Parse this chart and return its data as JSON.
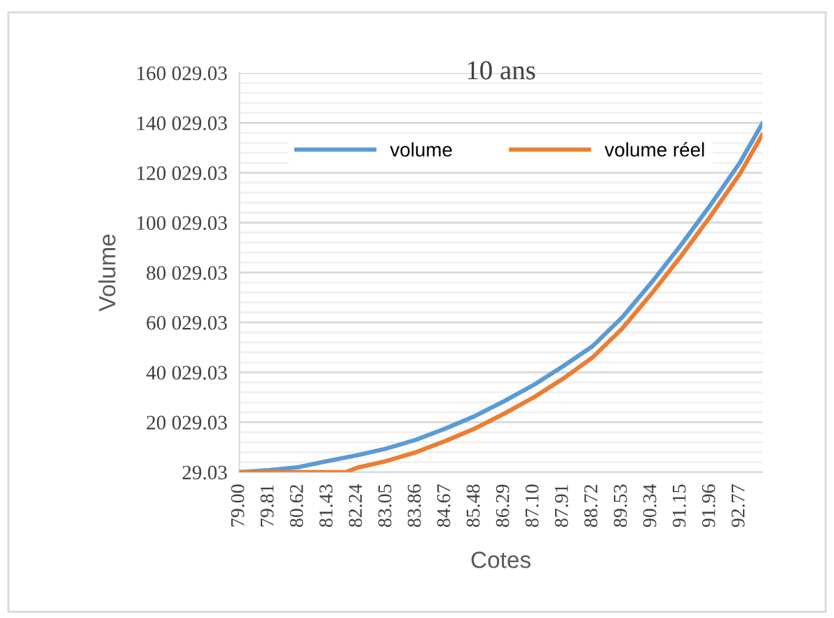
{
  "chart_data": {
    "type": "line",
    "title": "10 ans",
    "xlabel": "Cotes",
    "ylabel": "Volume",
    "xlim": [
      79.0,
      93.39
    ],
    "xticks": [
      {
        "value": 79.0,
        "label": "79.00"
      },
      {
        "value": 79.81,
        "label": "79.81"
      },
      {
        "value": 80.62,
        "label": "80.62"
      },
      {
        "value": 81.43,
        "label": "81.43"
      },
      {
        "value": 82.24,
        "label": "82.24"
      },
      {
        "value": 83.05,
        "label": "83.05"
      },
      {
        "value": 83.86,
        "label": "83.86"
      },
      {
        "value": 84.67,
        "label": "84.67"
      },
      {
        "value": 85.48,
        "label": "85.48"
      },
      {
        "value": 86.29,
        "label": "86.29"
      },
      {
        "value": 87.1,
        "label": "87.10"
      },
      {
        "value": 87.91,
        "label": "87.91"
      },
      {
        "value": 88.72,
        "label": "88.72"
      },
      {
        "value": 89.53,
        "label": "89.53"
      },
      {
        "value": 90.34,
        "label": "90.34"
      },
      {
        "value": 91.15,
        "label": "91.15"
      },
      {
        "value": 91.96,
        "label": "91.96"
      },
      {
        "value": 92.77,
        "label": "92.77"
      }
    ],
    "ylim": [
      29.03,
      160029.03
    ],
    "yticks": [
      {
        "value": 29.03,
        "label": "29.03"
      },
      {
        "value": 4029.03,
        "label": null
      },
      {
        "value": 8029.03,
        "label": null
      },
      {
        "value": 12029.03,
        "label": null
      },
      {
        "value": 16029.03,
        "label": null
      },
      {
        "value": 20029.03,
        "label": "20 029.03"
      },
      {
        "value": 24029.03,
        "label": null
      },
      {
        "value": 28029.03,
        "label": null
      },
      {
        "value": 32029.03,
        "label": null
      },
      {
        "value": 36029.03,
        "label": null
      },
      {
        "value": 40029.03,
        "label": "40 029.03"
      },
      {
        "value": 44029.03,
        "label": null
      },
      {
        "value": 48029.03,
        "label": null
      },
      {
        "value": 52029.03,
        "label": null
      },
      {
        "value": 56029.03,
        "label": null
      },
      {
        "value": 60029.03,
        "label": "60 029.03"
      },
      {
        "value": 64029.03,
        "label": null
      },
      {
        "value": 68029.03,
        "label": null
      },
      {
        "value": 72029.03,
        "label": null
      },
      {
        "value": 76029.03,
        "label": null
      },
      {
        "value": 80029.03,
        "label": "80 029.03"
      },
      {
        "value": 84029.03,
        "label": null
      },
      {
        "value": 88029.03,
        "label": null
      },
      {
        "value": 92029.03,
        "label": null
      },
      {
        "value": 96029.03,
        "label": null
      },
      {
        "value": 100029.03,
        "label": "100 029.03"
      },
      {
        "value": 104029.03,
        "label": null
      },
      {
        "value": 108029.03,
        "label": null
      },
      {
        "value": 112029.03,
        "label": null
      },
      {
        "value": 116029.03,
        "label": null
      },
      {
        "value": 120029.03,
        "label": "120 029.03"
      },
      {
        "value": 124029.03,
        "label": null
      },
      {
        "value": 128029.03,
        "label": null
      },
      {
        "value": 132029.03,
        "label": null
      },
      {
        "value": 136029.03,
        "label": null
      },
      {
        "value": 140029.03,
        "label": "140 029.03"
      },
      {
        "value": 144029.03,
        "label": null
      },
      {
        "value": 148029.03,
        "label": null
      },
      {
        "value": 152029.03,
        "label": null
      },
      {
        "value": 156029.03,
        "label": null
      },
      {
        "value": 160029.03,
        "label": "160 029.03"
      }
    ],
    "grid": "y",
    "legend": "top",
    "marker": "none",
    "line_style": "solid",
    "series": [
      {
        "name": "volume",
        "color": "#5b9bd5",
        "x": [
          79.0,
          79.81,
          80.62,
          81.43,
          82.24,
          83.05,
          83.86,
          84.67,
          85.48,
          86.29,
          87.1,
          87.91,
          88.72,
          89.53,
          90.34,
          91.15,
          91.96,
          92.77,
          93.39
        ],
        "values": [
          29.03,
          800,
          2000,
          4500,
          6800,
          9500,
          13000,
          17500,
          22500,
          28500,
          35000,
          42500,
          50500,
          62000,
          76000,
          91000,
          107000,
          124000,
          139700
        ]
      },
      {
        "name": "volume réel",
        "color": "#ed7d31",
        "x": [
          79.0,
          79.81,
          80.62,
          81.43,
          81.93,
          82.24,
          83.05,
          83.86,
          84.67,
          85.48,
          86.29,
          87.1,
          87.91,
          88.72,
          89.53,
          90.34,
          91.15,
          91.96,
          92.77,
          93.39
        ],
        "values": [
          29.03,
          29.03,
          29.03,
          29.03,
          29.03,
          1800,
          4500,
          8000,
          12500,
          17500,
          23500,
          30000,
          37500,
          46000,
          57500,
          71500,
          86500,
          102500,
          119500,
          135300
        ]
      }
    ]
  }
}
